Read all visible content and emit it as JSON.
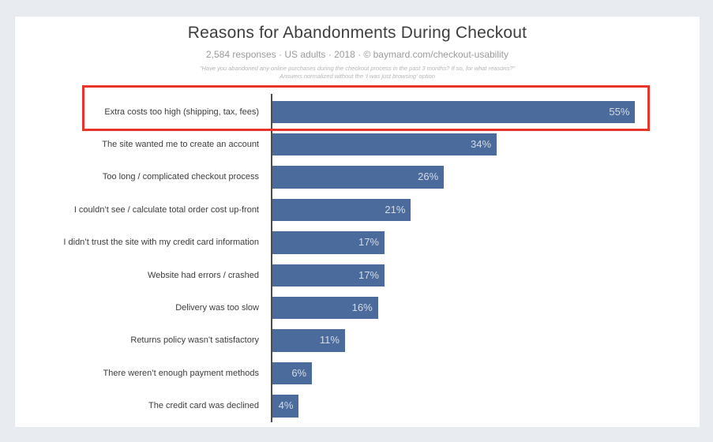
{
  "page": {
    "background": "#e8ebf0",
    "card_background": "#ffffff"
  },
  "header": {
    "title": "Reasons for Abandonments During Checkout",
    "subtitle": "2,584 responses  ·  US adults  ·  2018  ·  © baymard.com/checkout-usability",
    "note_line1": "\"Have you abandoned any online purchases during the checkout process in the past 3 months? If so, for what reasons?\"",
    "note_line2": "Answers normalized without the ‘I was just browsing’ option"
  },
  "chart_data": {
    "type": "bar",
    "orientation": "horizontal",
    "title": "Reasons for Abandonments During Checkout",
    "subtitle": "2,584 responses · US adults · 2018 · © baymard.com/checkout-usability",
    "categories": [
      "Extra costs too high (shipping, tax, fees)",
      "The site wanted me to create an account",
      "Too long / complicated checkout process",
      "I couldn’t see / calculate total order cost up-front",
      "I didn’t trust the site with my credit card information",
      "Website had errors / crashed",
      "Delivery was too slow",
      "Returns policy wasn’t satisfactory",
      "There weren’t enough payment methods",
      "The credit card was declined"
    ],
    "values": [
      55,
      34,
      26,
      21,
      17,
      17,
      16,
      11,
      6,
      4
    ],
    "value_labels": [
      "55%",
      "34%",
      "26%",
      "21%",
      "17%",
      "17%",
      "16%",
      "11%",
      "6%",
      "4%"
    ],
    "value_suffix": "%",
    "xlabel": "",
    "ylabel": "",
    "xlim": [
      0,
      65
    ],
    "grid": false,
    "legend": false,
    "bar_color": "#4a6b9b",
    "value_label_color": "#d7dce4",
    "axis_color": "#4c4c4c",
    "highlight_index": 0,
    "highlight_color": "#e7352b"
  }
}
